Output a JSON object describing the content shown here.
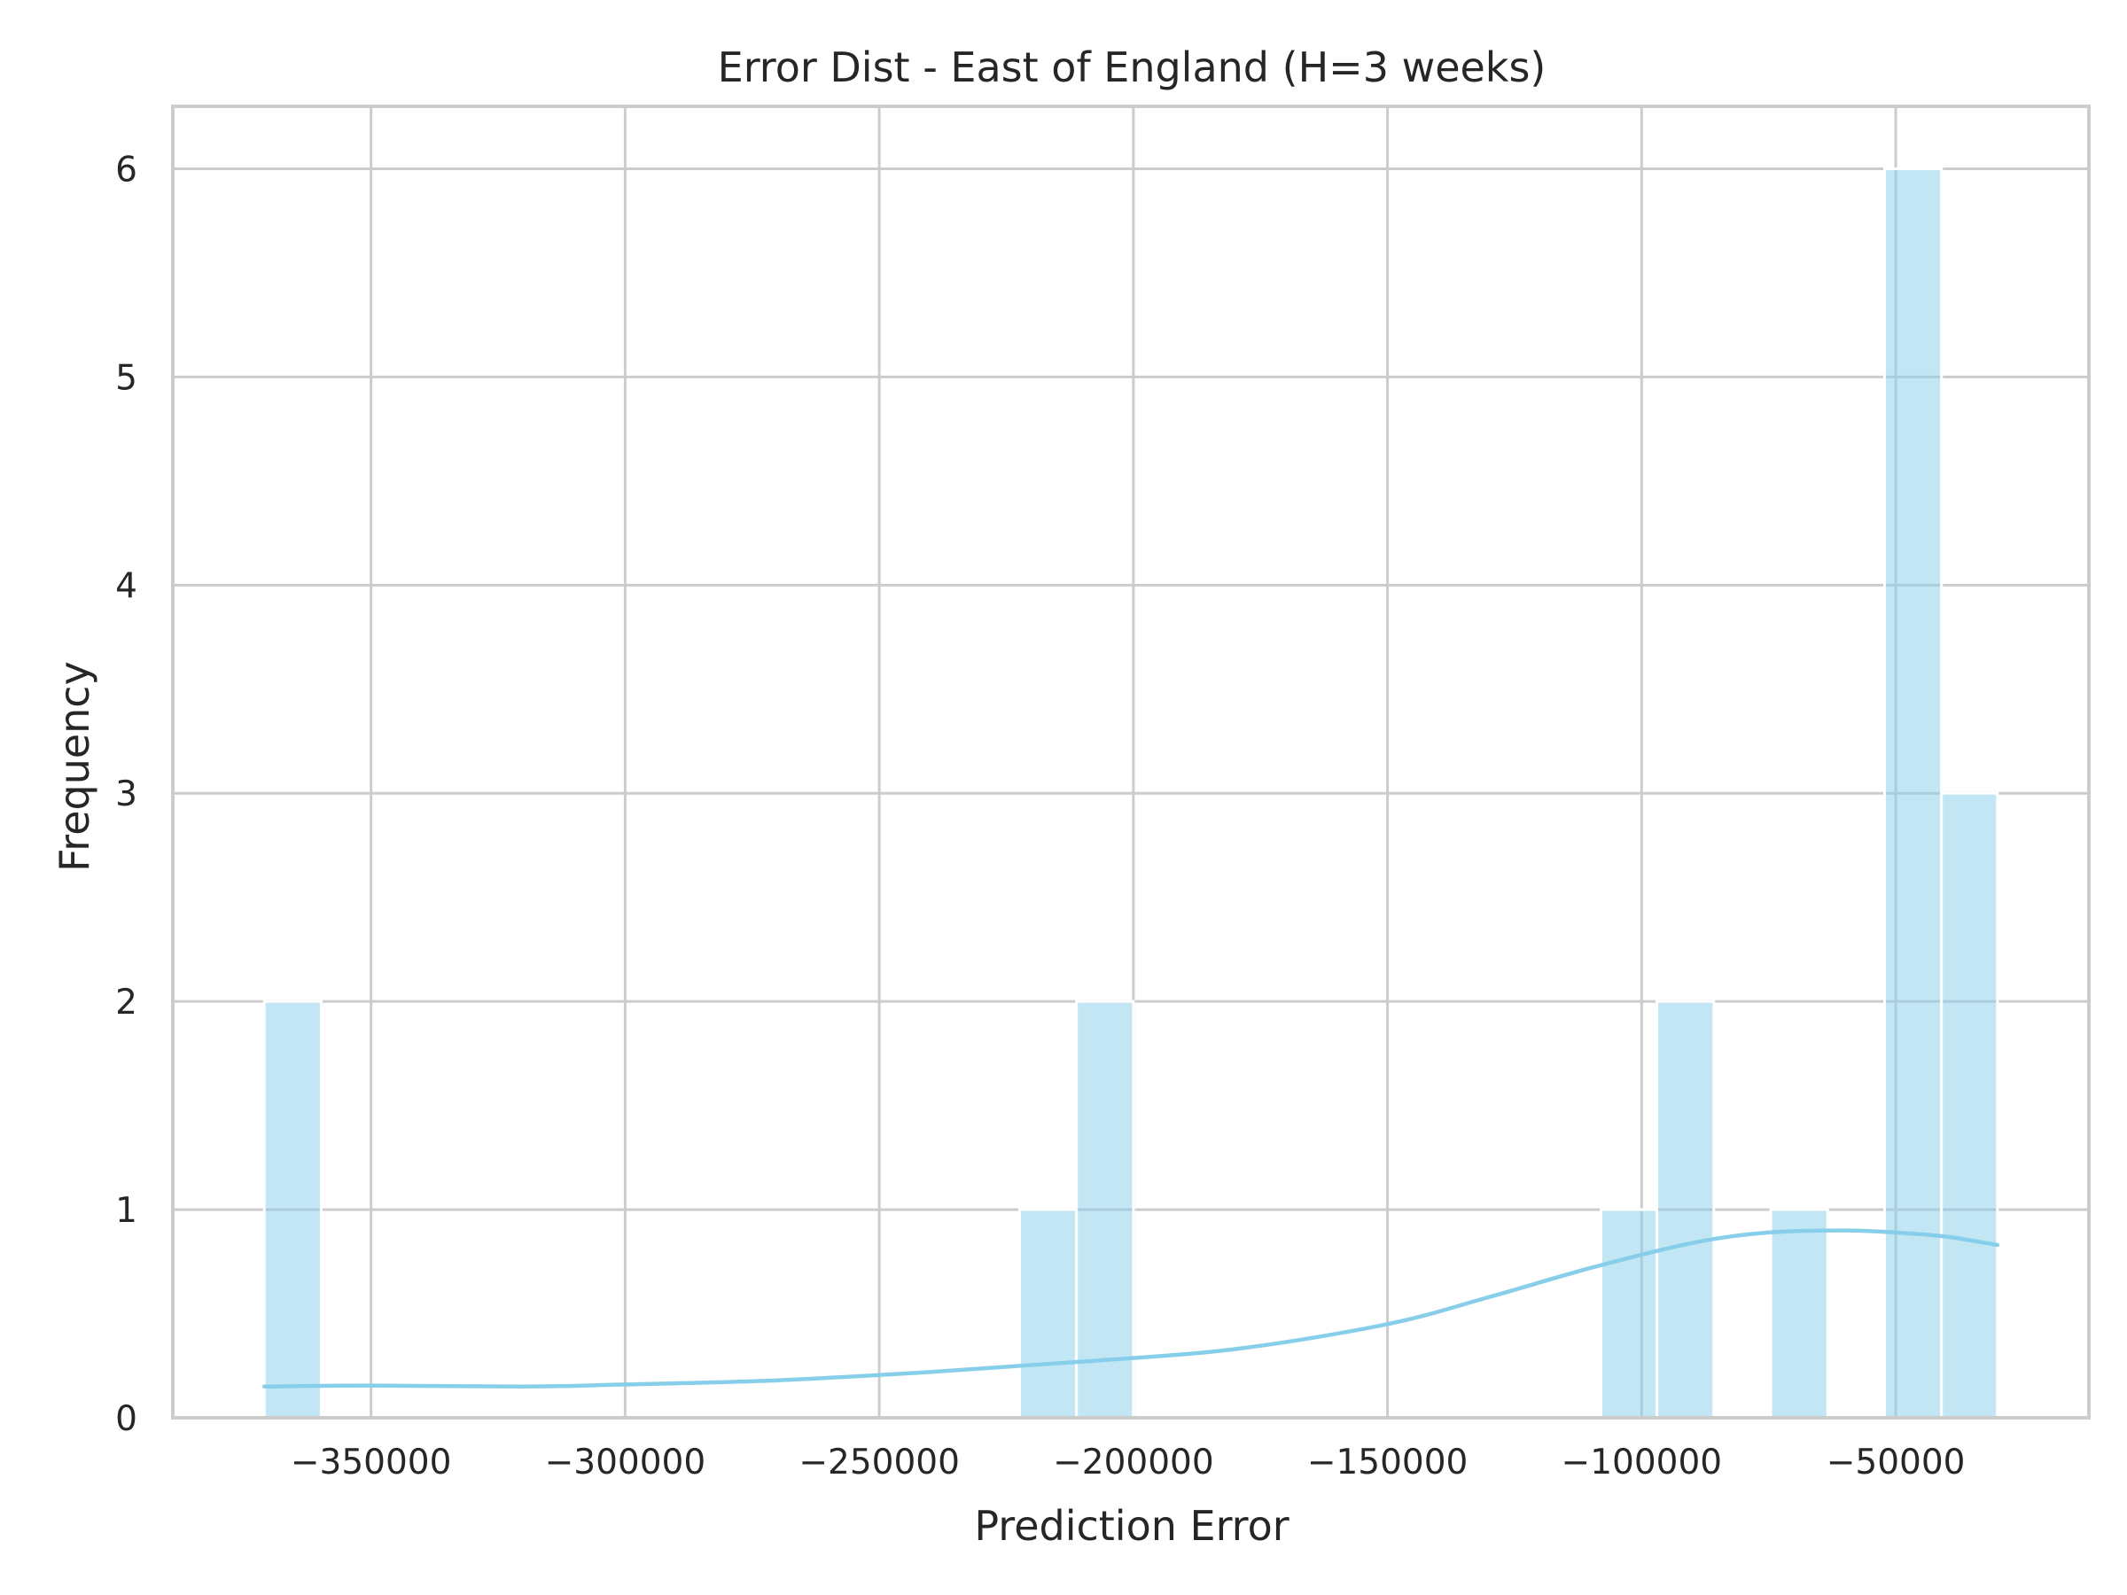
{
  "chart_data": {
    "type": "histogram",
    "title": "Error Dist - East of England (H=3 weeks)",
    "xlabel": "Prediction Error",
    "ylabel": "Frequency",
    "xlim": [
      -389000,
      -12000
    ],
    "ylim": [
      0,
      6.3
    ],
    "xticks": [
      -350000,
      -300000,
      -250000,
      -200000,
      -150000,
      -100000,
      -50000
    ],
    "xtick_labels": [
      "−350000",
      "−300000",
      "−250000",
      "−200000",
      "−150000",
      "−100000",
      "−50000"
    ],
    "yticks": [
      0,
      1,
      2,
      3,
      4,
      5,
      6
    ],
    "ytick_labels": [
      "0",
      "1",
      "2",
      "3",
      "4",
      "5",
      "6"
    ],
    "grid": true,
    "bins": [
      {
        "x0": -371000,
        "x1": -359800,
        "count": 2
      },
      {
        "x0": -222400,
        "x1": -211200,
        "count": 1
      },
      {
        "x0": -211200,
        "x1": -200000,
        "count": 2
      },
      {
        "x0": -108000,
        "x1": -97000,
        "count": 1
      },
      {
        "x0": -97000,
        "x1": -85800,
        "count": 2
      },
      {
        "x0": -74600,
        "x1": -63400,
        "count": 1
      },
      {
        "x0": -52200,
        "x1": -41000,
        "count": 6
      },
      {
        "x0": -41000,
        "x1": -30000,
        "count": 3
      }
    ],
    "kde": {
      "x": [
        -371000,
        -350000,
        -320000,
        -300000,
        -270000,
        -240000,
        -210000,
        -180000,
        -150000,
        -130000,
        -110000,
        -90000,
        -75000,
        -60000,
        -50000,
        -40000,
        -30000
      ],
      "y": [
        0.15,
        0.155,
        0.15,
        0.16,
        0.18,
        0.22,
        0.27,
        0.33,
        0.45,
        0.58,
        0.72,
        0.84,
        0.89,
        0.9,
        0.89,
        0.87,
        0.83
      ]
    },
    "colors": {
      "bar": "#87ceeb",
      "kde": "#87ceeb",
      "grid": "#cccccc",
      "spine": "#cccccc",
      "text": "#262626"
    }
  }
}
